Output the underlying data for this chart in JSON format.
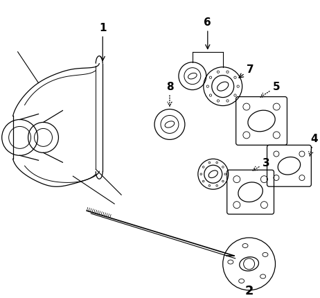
{
  "background_color": "#ffffff",
  "line_color": "#000000",
  "fig_width": 4.62,
  "fig_height": 4.31,
  "dpi": 100
}
